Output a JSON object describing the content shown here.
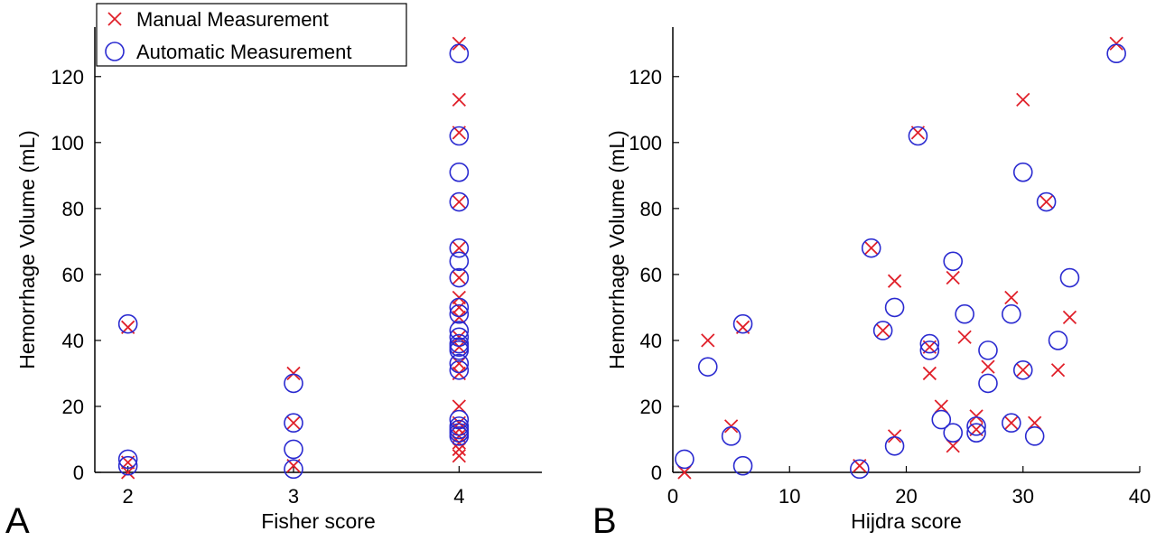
{
  "chart_data": [
    {
      "type": "scatter",
      "panel_label": "A",
      "xlabel": "Fisher score",
      "ylabel": "Hemorrhage Volume (mL)",
      "xlim": [
        1.8,
        4.5
      ],
      "ylim": [
        0,
        135
      ],
      "xticks": [
        2,
        3,
        4
      ],
      "yticks": [
        0,
        20,
        40,
        60,
        80,
        100,
        120
      ],
      "grid": false,
      "legend": {
        "placement": "top-left"
      },
      "series": [
        {
          "name": "Manual Measurement",
          "marker": "x",
          "color": "#e0202a",
          "x": [
            2,
            2,
            2,
            3,
            3,
            3,
            4,
            4,
            4,
            4,
            4,
            4,
            4,
            4,
            4,
            4,
            4,
            4,
            4,
            4,
            4,
            4,
            4,
            4,
            4,
            4
          ],
          "y": [
            44,
            3,
            0,
            30,
            15,
            2,
            130,
            113,
            103,
            82,
            68,
            59,
            53,
            50,
            47,
            41,
            38,
            33,
            30,
            20,
            15,
            13,
            11,
            9,
            7,
            5
          ]
        },
        {
          "name": "Automatic Measurement",
          "marker": "o",
          "color": "#2a2ad0",
          "x": [
            2,
            2,
            2,
            3,
            3,
            3,
            3,
            4,
            4,
            4,
            4,
            4,
            4,
            4,
            4,
            4,
            4,
            4,
            4,
            4,
            4,
            4,
            4,
            4,
            4,
            4,
            4,
            4
          ],
          "y": [
            45,
            4,
            2,
            27,
            15,
            7,
            1,
            127,
            102,
            91,
            82,
            68,
            64,
            59,
            50,
            48,
            43,
            41,
            39,
            38,
            37,
            33,
            31,
            16,
            14,
            13,
            12,
            11
          ]
        }
      ]
    },
    {
      "type": "scatter",
      "panel_label": "B",
      "xlabel": "Hijdra score",
      "ylabel": "Hemorrhage Volume (mL)",
      "xlim": [
        0,
        40
      ],
      "ylim": [
        0,
        135
      ],
      "xticks": [
        0,
        10,
        20,
        30,
        40
      ],
      "yticks": [
        0,
        20,
        40,
        60,
        80,
        100,
        120
      ],
      "grid": false,
      "series": [
        {
          "name": "Manual Measurement",
          "marker": "x",
          "color": "#e0202a",
          "x": [
            1,
            3,
            5,
            6,
            16,
            17,
            18,
            19,
            19,
            21,
            22,
            22,
            23,
            24,
            24,
            25,
            26,
            26,
            27,
            29,
            29,
            30,
            30,
            31,
            32,
            33,
            34,
            38
          ],
          "y": [
            0,
            40,
            14,
            44,
            2,
            68,
            43,
            58,
            11,
            103,
            30,
            38,
            20,
            59,
            8,
            41,
            17,
            13,
            32,
            53,
            15,
            113,
            31,
            15,
            82,
            31,
            47,
            130
          ]
        },
        {
          "name": "Automatic Measurement",
          "marker": "o",
          "color": "#2a2ad0",
          "x": [
            1,
            3,
            5,
            6,
            6,
            16,
            17,
            18,
            19,
            19,
            21,
            22,
            22,
            23,
            24,
            24,
            25,
            26,
            26,
            27,
            27,
            29,
            29,
            30,
            30,
            31,
            32,
            33,
            34,
            38
          ],
          "y": [
            4,
            32,
            11,
            45,
            2,
            1,
            68,
            43,
            50,
            8,
            102,
            39,
            37,
            16,
            64,
            12,
            48,
            14,
            12,
            37,
            27,
            48,
            15,
            91,
            31,
            11,
            82,
            40,
            59,
            127
          ]
        }
      ]
    }
  ]
}
